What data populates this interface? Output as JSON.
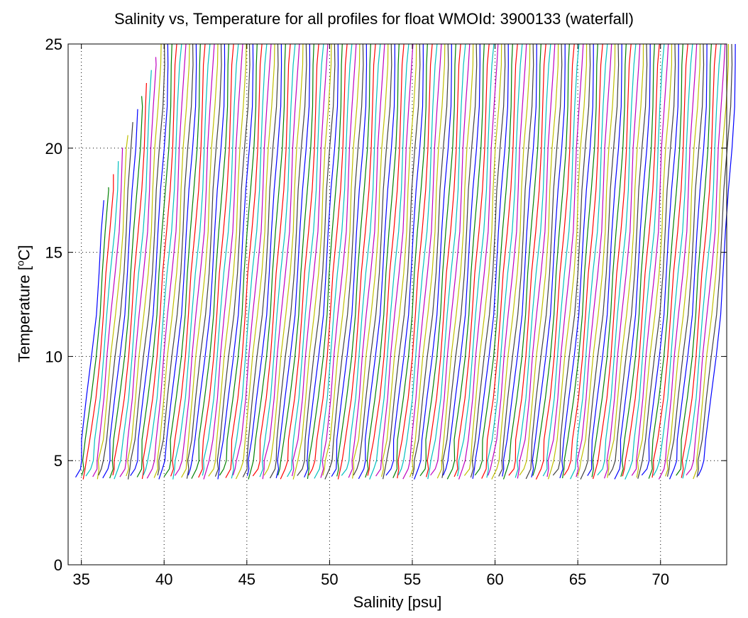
{
  "figure": {
    "title": "Salinity vs, Temperature for all profiles for float WMOId: 3900133 (waterfall)",
    "xlabel": "Salinity [psu]",
    "ylabel_prefix": "Temperature [",
    "ylabel_sup": "o",
    "ylabel_suffix": "C]"
  },
  "chart_data": {
    "type": "line",
    "title": "Salinity vs, Temperature for all profiles for float WMOId: 3900133 (waterfall)",
    "xlabel": "Salinity [psu]",
    "ylabel": "Temperature [oC]",
    "xlim": [
      34.2,
      74.0
    ],
    "ylim": [
      0,
      25
    ],
    "xticks": [
      35,
      40,
      45,
      50,
      55,
      60,
      65,
      70
    ],
    "yticks": [
      0,
      5,
      10,
      15,
      20,
      25
    ],
    "grid": true,
    "grid_style": "dotted",
    "legend": "none",
    "series_colors": [
      "#0000ff",
      "#008000",
      "#ff0000",
      "#00bfbf",
      "#bf00bf",
      "#bfbf00",
      "#404040"
    ],
    "waterfall": {
      "profile_count": 155,
      "first_offset_salinity": 34.9,
      "offset_step_salinity": 0.245,
      "surface_temperature": 25.0,
      "bottom_temperature": 4.2,
      "first_surface_temperature": 17.5
    },
    "profile_shape": [
      {
        "t": 4.2,
        "ds": -0.25
      },
      {
        "t": 4.6,
        "ds": -0.05
      },
      {
        "t": 5.0,
        "ds": 0.0
      },
      {
        "t": 6.0,
        "ds": 0.15
      },
      {
        "t": 8.0,
        "ds": 0.45
      },
      {
        "t": 10.0,
        "ds": 0.7
      },
      {
        "t": 12.0,
        "ds": 0.95
      },
      {
        "t": 14.0,
        "ds": 1.15
      },
      {
        "t": 16.0,
        "ds": 1.35
      },
      {
        "t": 18.0,
        "ds": 1.5
      },
      {
        "t": 20.0,
        "ds": 1.65
      },
      {
        "t": 22.0,
        "ds": 1.8
      },
      {
        "t": 24.0,
        "ds": 1.9
      },
      {
        "t": 25.0,
        "ds": 1.95
      }
    ]
  }
}
